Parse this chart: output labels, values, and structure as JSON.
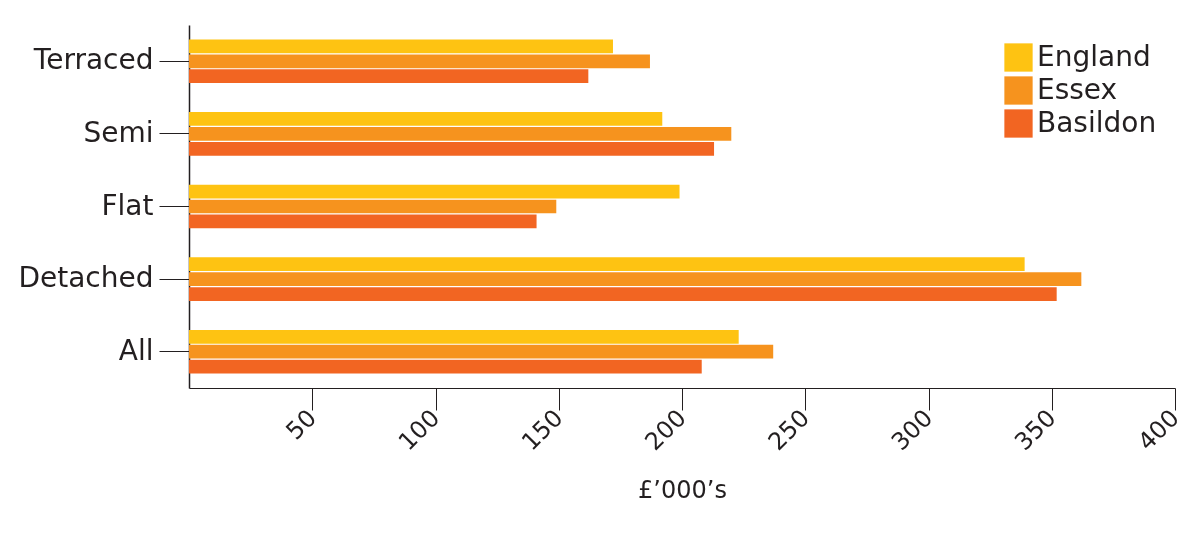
{
  "chart_data": {
    "type": "bar",
    "orientation": "horizontal",
    "xlabel": "£’000’s",
    "categories": [
      "Terraced",
      "Semi",
      "Flat",
      "Detached",
      "All"
    ],
    "series": [
      {
        "name": "England",
        "color": "#fec312",
        "values": [
          172,
          192,
          199,
          339,
          223
        ]
      },
      {
        "name": "Essex",
        "color": "#f6931e",
        "values": [
          187,
          220,
          149,
          362,
          237
        ]
      },
      {
        "name": "Basildon",
        "color": "#f26522",
        "values": [
          162,
          213,
          141,
          352,
          208
        ]
      }
    ],
    "xlim": [
      0,
      400
    ],
    "xticks": [
      50,
      100,
      150,
      200,
      250,
      300,
      350,
      400
    ],
    "legend": "top right",
    "grid": false
  }
}
